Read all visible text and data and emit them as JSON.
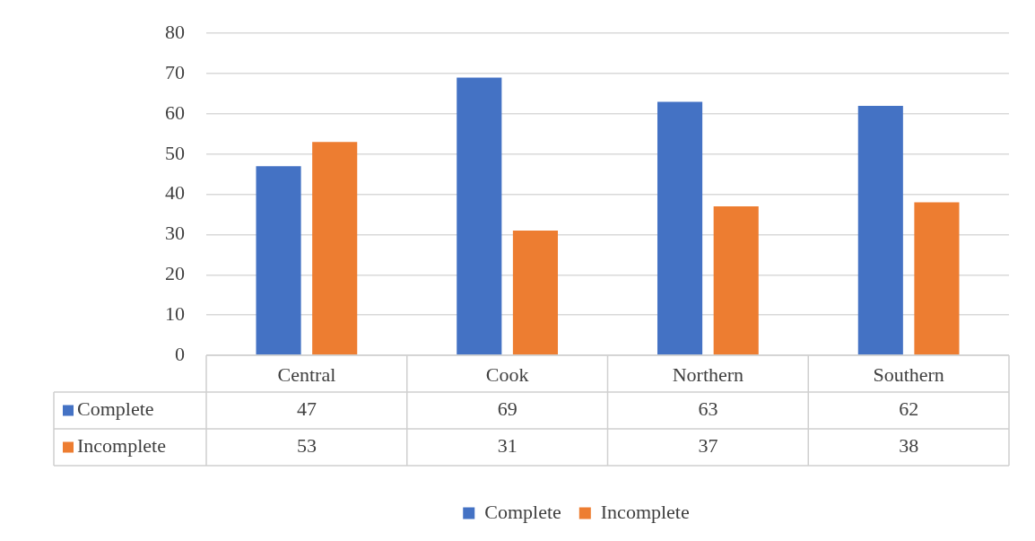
{
  "chart_data": {
    "type": "bar",
    "categories": [
      "Central",
      "Cook",
      "Northern",
      "Southern"
    ],
    "series": [
      {
        "name": "Complete",
        "color": "#4472c4",
        "values": [
          47,
          69,
          63,
          62
        ]
      },
      {
        "name": "Incomplete",
        "color": "#ed7d31",
        "values": [
          53,
          31,
          37,
          38
        ]
      }
    ],
    "ylim": [
      0,
      80
    ],
    "yticks": [
      0,
      10,
      20,
      30,
      40,
      50,
      60,
      70,
      80
    ],
    "grid": "y",
    "legend": "bottom",
    "data_labels": true
  }
}
